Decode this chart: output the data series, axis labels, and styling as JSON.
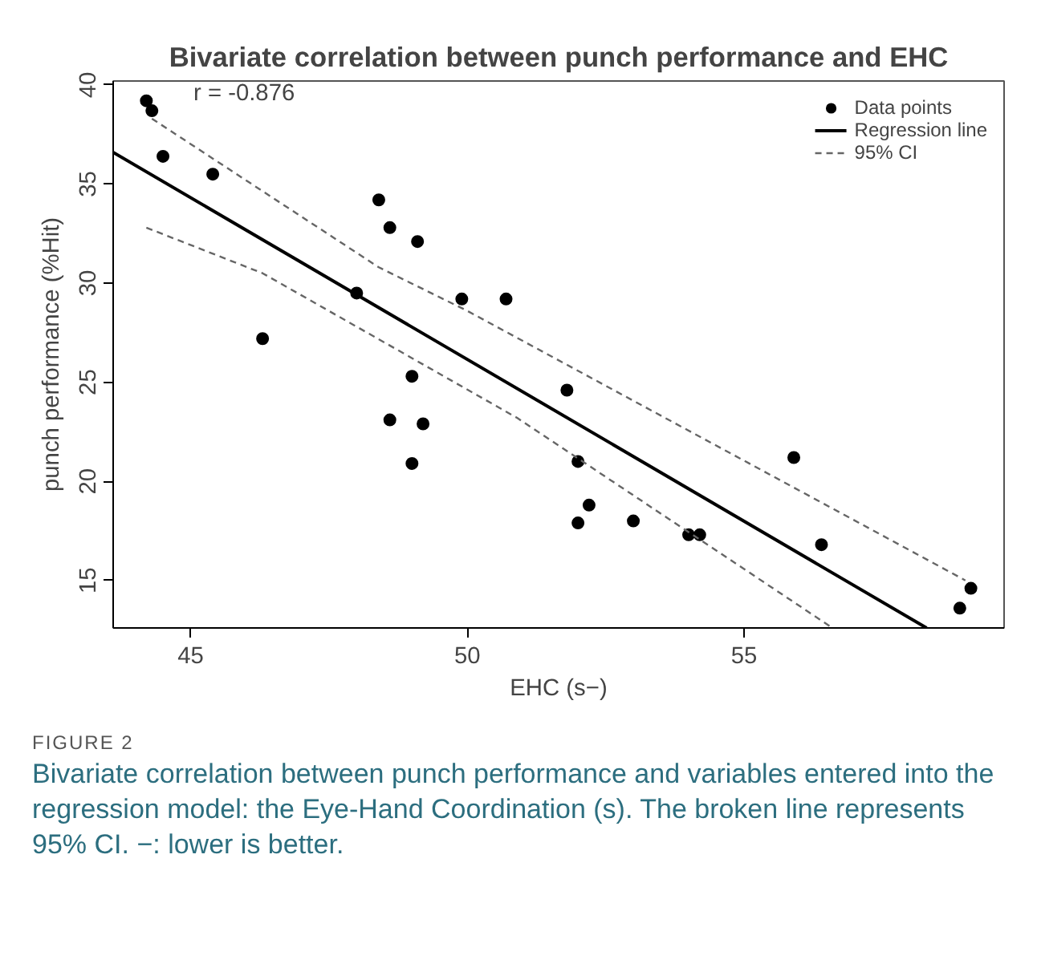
{
  "chart_data": {
    "type": "scatter",
    "title": "Bivariate correlation between punch performance and EHC",
    "xlabel": "EHC (s−)",
    "ylabel": "punch performance (%Hit)",
    "xlim": [
      43.6,
      59.7
    ],
    "ylim": [
      12.6,
      40.2
    ],
    "xticks": [
      45,
      50,
      55
    ],
    "yticks": [
      15,
      20,
      25,
      30,
      35,
      40
    ],
    "grid": false,
    "legend": "top right",
    "series": [
      {
        "name": "Data points",
        "marker": "circle",
        "color": "#000000",
        "x": [
          44.2,
          44.3,
          44.5,
          45.4,
          48.4,
          48.6,
          49.1,
          48.0,
          49.9,
          50.7,
          46.3,
          49.0,
          48.6,
          49.2,
          49.0,
          51.8,
          52.0,
          52.2,
          52.0,
          53.0,
          54.0,
          54.2,
          55.9,
          56.4,
          59.1,
          58.9
        ],
        "values": [
          39.2,
          38.7,
          36.4,
          35.5,
          34.2,
          32.8,
          32.1,
          29.5,
          29.2,
          29.2,
          27.2,
          25.3,
          23.1,
          22.9,
          20.9,
          24.6,
          21.0,
          18.8,
          17.9,
          18.0,
          17.3,
          17.3,
          21.2,
          16.8,
          14.6,
          13.6
        ]
      },
      {
        "name": "Regression line",
        "type": "line",
        "marker": "none",
        "color": "#000000",
        "line_style": "solid",
        "x": [
          43.6,
          58.3
        ],
        "values": [
          36.6,
          12.6
        ]
      },
      {
        "name": "95% CI",
        "type": "line",
        "marker": "none",
        "color": "#666666",
        "line_style": "dashed",
        "x": [
          44.3,
          48.4,
          50.0,
          59.0
        ],
        "values": [
          38.3,
          30.8,
          28.6,
          15.0
        ]
      },
      {
        "type": "line",
        "marker": "none",
        "color": "#666666",
        "line_style": "dashed",
        "x": [
          44.2,
          46.3,
          50.9,
          56.6
        ],
        "values": [
          32.8,
          30.5,
          23.2,
          12.6
        ]
      }
    ],
    "annotations": [
      "r = -0.876",
      "FIGURE 2",
      "Bivariate correlation between punch performance and variables entered into the regression model: the Eye-Hand Coordination (s). The broken line represents 95% CI. −: lower is better."
    ]
  }
}
